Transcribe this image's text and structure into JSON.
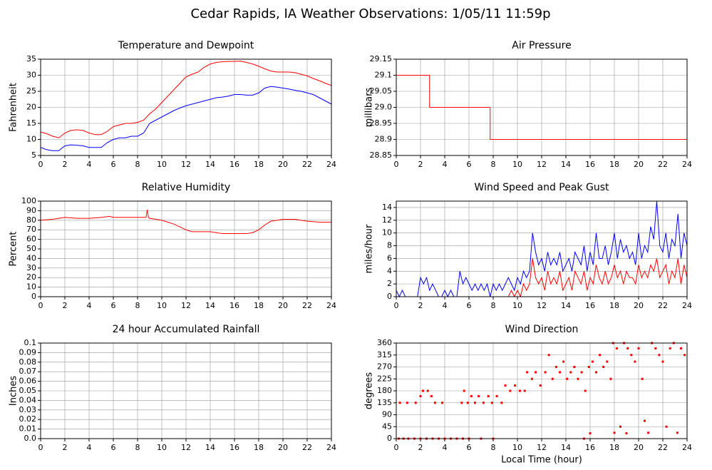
{
  "title": "Cedar Rapids, IA Weather Observations: 1/05/11 11:59p",
  "chart_data": [
    {
      "type": "line",
      "title": "Temperature and Dewpoint",
      "ylabel": "Fahrenheit",
      "x": [
        0,
        0.5,
        1,
        1.5,
        2,
        2.5,
        3,
        3.5,
        4,
        4.5,
        5,
        5.5,
        6,
        6.5,
        7,
        7.5,
        8,
        8.5,
        9,
        9.5,
        10,
        10.5,
        11,
        11.5,
        12,
        12.5,
        13,
        13.5,
        14,
        14.5,
        15,
        15.5,
        16,
        16.5,
        17,
        17.5,
        18,
        18.5,
        19,
        19.5,
        20,
        20.5,
        21,
        21.5,
        22,
        22.5,
        23,
        23.5,
        24
      ],
      "series": [
        {
          "color": "#ff0000",
          "values": [
            12.3,
            11.8,
            11,
            10.5,
            12,
            12.8,
            13,
            12.8,
            12,
            11.5,
            11.5,
            12.5,
            14,
            14.5,
            15,
            15,
            15.3,
            16,
            18,
            19.5,
            21.5,
            23.5,
            25.5,
            27.5,
            29.5,
            30.3,
            31,
            32.5,
            33.5,
            34,
            34.2,
            34.3,
            34.3,
            34.4,
            34,
            33.5,
            32.8,
            32,
            31.3,
            31,
            31,
            31,
            30.8,
            30.3,
            29.8,
            29,
            28.3,
            27.5,
            26.8
          ]
        },
        {
          "color": "#0000ff",
          "values": [
            7.5,
            6.8,
            6.5,
            6.5,
            8,
            8.3,
            8.2,
            8,
            7.5,
            7.5,
            7.5,
            9,
            10,
            10.5,
            10.5,
            11,
            11,
            12,
            15,
            16,
            17,
            18,
            19,
            19.8,
            20.5,
            21,
            21.5,
            22,
            22.5,
            23,
            23.2,
            23.5,
            24,
            24,
            23.8,
            23.8,
            24.5,
            26,
            26.5,
            26.3,
            26,
            25.7,
            25.3,
            25,
            24.5,
            24,
            23,
            22,
            21
          ]
        }
      ],
      "xlim": [
        0,
        24
      ],
      "xticks": [
        0,
        2,
        4,
        6,
        8,
        10,
        12,
        14,
        16,
        18,
        20,
        22,
        24
      ],
      "ylim": [
        5,
        35
      ],
      "yticks": [
        5,
        10,
        15,
        20,
        25,
        30,
        35
      ],
      "grid": true
    },
    {
      "type": "line",
      "title": "Air Pressure",
      "ylabel": "millibars",
      "x": [
        0,
        2.75,
        2.75,
        7.75,
        7.75,
        24
      ],
      "series": [
        {
          "color": "#ff0000",
          "values": [
            29.1,
            29.1,
            29.0,
            29.0,
            28.9,
            28.9
          ]
        }
      ],
      "xlim": [
        0,
        24
      ],
      "xticks": [
        0,
        2,
        4,
        6,
        8,
        10,
        12,
        14,
        16,
        18,
        20,
        22,
        24
      ],
      "ylim": [
        28.85,
        29.15
      ],
      "yticks": [
        28.85,
        28.9,
        28.95,
        {
          "value": 29,
          "label": "29.0"
        },
        29.05,
        29.1,
        29.15
      ],
      "grid": true
    },
    {
      "type": "line",
      "title": "Relative Humidity",
      "ylabel": "Percent",
      "x": [
        0,
        1,
        2,
        3,
        4,
        5,
        5.7,
        6,
        7,
        8,
        8.7,
        8.8,
        8.9,
        9,
        10,
        11,
        11.5,
        12,
        12.5,
        13,
        14,
        15,
        16,
        17,
        17.5,
        18,
        18.5,
        19,
        20,
        21,
        22,
        23,
        24
      ],
      "series": [
        {
          "color": "#ff0000",
          "values": [
            80,
            81,
            83,
            82,
            82,
            83,
            84,
            83,
            83,
            83,
            83,
            91,
            83,
            82,
            80,
            76,
            73,
            70,
            68,
            68,
            68,
            66,
            66,
            66,
            67,
            70,
            75,
            79,
            81,
            81,
            79,
            78,
            78
          ]
        }
      ],
      "xlim": [
        0,
        24
      ],
      "xticks": [
        0,
        2,
        4,
        6,
        8,
        10,
        12,
        14,
        16,
        18,
        20,
        22,
        24
      ],
      "ylim": [
        0,
        100
      ],
      "yticks": [
        0,
        10,
        20,
        30,
        40,
        50,
        60,
        70,
        80,
        90,
        100
      ],
      "grid": true
    },
    {
      "type": "line",
      "title": "Wind Speed and Peak Gust",
      "ylabel": "miles/hour",
      "x": [
        0,
        0.25,
        0.5,
        0.75,
        1,
        1.25,
        1.5,
        1.75,
        2,
        2.25,
        2.5,
        2.75,
        3,
        3.25,
        3.5,
        3.75,
        4,
        4.25,
        4.5,
        4.75,
        5,
        5.25,
        5.5,
        5.75,
        6,
        6.25,
        6.5,
        6.75,
        7,
        7.25,
        7.5,
        7.75,
        8,
        8.25,
        8.5,
        8.75,
        9,
        9.25,
        9.5,
        9.75,
        10,
        10.25,
        10.5,
        10.75,
        11,
        11.25,
        11.5,
        11.75,
        12,
        12.25,
        12.5,
        12.75,
        13,
        13.25,
        13.5,
        13.75,
        14,
        14.25,
        14.5,
        14.75,
        15,
        15.25,
        15.5,
        15.75,
        16,
        16.25,
        16.5,
        16.75,
        17,
        17.25,
        17.5,
        17.75,
        18,
        18.25,
        18.5,
        18.75,
        19,
        19.25,
        19.5,
        19.75,
        20,
        20.25,
        20.5,
        20.75,
        21,
        21.25,
        21.5,
        21.75,
        22,
        22.25,
        22.5,
        22.75,
        23,
        23.25,
        23.5,
        23.75,
        24
      ],
      "series": [
        {
          "color": "#0000ff",
          "values": [
            1,
            0,
            1,
            0,
            0,
            0,
            0,
            0,
            3,
            2,
            3,
            1,
            2,
            1,
            0,
            0,
            1,
            0,
            1,
            0,
            0,
            4,
            2,
            3,
            2,
            1,
            2,
            1,
            2,
            1,
            2,
            0,
            2,
            1,
            2,
            1,
            2,
            3,
            2,
            1,
            3,
            2,
            4,
            3,
            4,
            10,
            7,
            5,
            6,
            4,
            7,
            5,
            6,
            5,
            7,
            4,
            5,
            6,
            4,
            7,
            6,
            5,
            8,
            4,
            7,
            5,
            10,
            6,
            6,
            8,
            5,
            7,
            10,
            6,
            9,
            7,
            8,
            6,
            7,
            5,
            10,
            6,
            8,
            7,
            11,
            9,
            15,
            8,
            7,
            10,
            6,
            9,
            8,
            13,
            6,
            10,
            8
          ]
        },
        {
          "color": "#ff0000",
          "values": [
            0,
            0,
            0,
            0,
            0,
            0,
            0,
            0,
            0,
            0,
            0,
            0,
            0,
            0,
            0,
            0,
            0,
            0,
            0,
            0,
            0,
            0,
            0,
            0,
            0,
            0,
            0,
            0,
            0,
            0,
            0,
            0,
            0,
            0,
            0,
            0,
            0,
            0,
            1,
            0,
            1,
            0,
            2,
            1,
            2,
            6,
            3,
            2,
            3,
            1,
            4,
            2,
            3,
            2,
            4,
            1,
            2,
            3,
            1,
            4,
            3,
            2,
            4,
            1,
            3,
            2,
            5,
            3,
            2,
            4,
            2,
            3,
            5,
            3,
            4,
            2,
            4,
            3,
            3,
            2,
            5,
            3,
            4,
            3,
            5,
            4,
            6,
            3,
            4,
            5,
            2,
            4,
            3,
            6,
            2,
            5,
            3
          ]
        }
      ],
      "xlim": [
        0,
        24
      ],
      "xticks": [
        0,
        2,
        4,
        6,
        8,
        10,
        12,
        14,
        16,
        18,
        20,
        22,
        24
      ],
      "ylim": [
        0,
        15
      ],
      "yticks": [
        0,
        2,
        4,
        6,
        8,
        10,
        12,
        14
      ],
      "grid": true
    },
    {
      "type": "line",
      "title": "24 hour Accumulated Rainfall",
      "ylabel": "Inches",
      "x": [
        0,
        24
      ],
      "series": [
        {
          "color": "#ff0000",
          "values": [
            0,
            0
          ]
        }
      ],
      "xlim": [
        0,
        24
      ],
      "xticks": [
        0,
        2,
        4,
        6,
        8,
        10,
        12,
        14,
        16,
        18,
        20,
        22,
        24
      ],
      "ylim": [
        0,
        0.1
      ],
      "yticks": [
        {
          "value": 0,
          "label": "0.0"
        },
        0.01,
        0.02,
        0.03,
        0.04,
        0.05,
        0.06,
        0.07,
        0.08,
        0.09,
        0.1
      ],
      "grid": true
    },
    {
      "type": "scatter",
      "title": "Wind Direction",
      "ylabel": "degrees",
      "xlabel": "Local Time (hour)",
      "x": [
        0.2,
        0.6,
        1.0,
        1.5,
        2.0,
        2.5,
        3.0,
        3.5,
        4.0,
        4.5,
        5.0,
        5.5,
        6.0,
        7.0,
        8.0,
        0.3,
        0.9,
        1.6,
        2.0,
        2.2,
        2.6,
        2.9,
        3.2,
        3.8,
        5.4,
        5.6,
        5.9,
        6.2,
        6.5,
        6.8,
        7.2,
        7.6,
        7.9,
        8.3,
        8.7,
        9.0,
        9.4,
        9.8,
        10.2,
        10.6,
        10.8,
        11.2,
        11.5,
        11.9,
        12.3,
        12.6,
        12.9,
        13.2,
        13.5,
        13.8,
        14.1,
        14.4,
        14.7,
        15.0,
        15.3,
        15.6,
        15.9,
        16.2,
        16.5,
        16.8,
        17.1,
        17.4,
        17.7,
        17.9,
        18.2,
        18.5,
        18.8,
        19.1,
        19.4,
        19.7,
        20.0,
        20.3,
        20.5,
        20.8,
        21.1,
        21.4,
        21.7,
        22.0,
        22.3,
        22.6,
        22.9,
        23.2,
        23.5,
        23.8,
        15.5,
        16.0,
        18.0,
        19.0
      ],
      "series": [
        {
          "color": "#ff0000",
          "values": [
            0,
            0,
            0,
            0,
            0,
            0,
            0,
            0,
            0,
            0,
            0,
            0,
            0,
            0,
            0,
            135,
            135,
            135,
            160,
            180,
            180,
            160,
            135,
            135,
            135,
            180,
            135,
            160,
            135,
            160,
            135,
            160,
            135,
            160,
            135,
            200,
            180,
            200,
            180,
            180,
            250,
            225,
            250,
            200,
            250,
            315,
            225,
            270,
            250,
            290,
            225,
            250,
            270,
            225,
            250,
            180,
            270,
            290,
            250,
            315,
            270,
            290,
            225,
            360,
            340,
            45,
            360,
            340,
            315,
            290,
            340,
            225,
            67,
            22,
            360,
            340,
            315,
            290,
            45,
            340,
            360,
            22,
            340,
            315,
            0,
            20,
            22,
            20
          ]
        }
      ],
      "xlim": [
        0,
        24
      ],
      "xticks": [
        0,
        2,
        4,
        6,
        8,
        10,
        12,
        14,
        16,
        18,
        20,
        22,
        24
      ],
      "ylim": [
        0,
        360
      ],
      "yticks": [
        0,
        45,
        90,
        135,
        180,
        225,
        270,
        315,
        360
      ],
      "grid": true
    }
  ]
}
